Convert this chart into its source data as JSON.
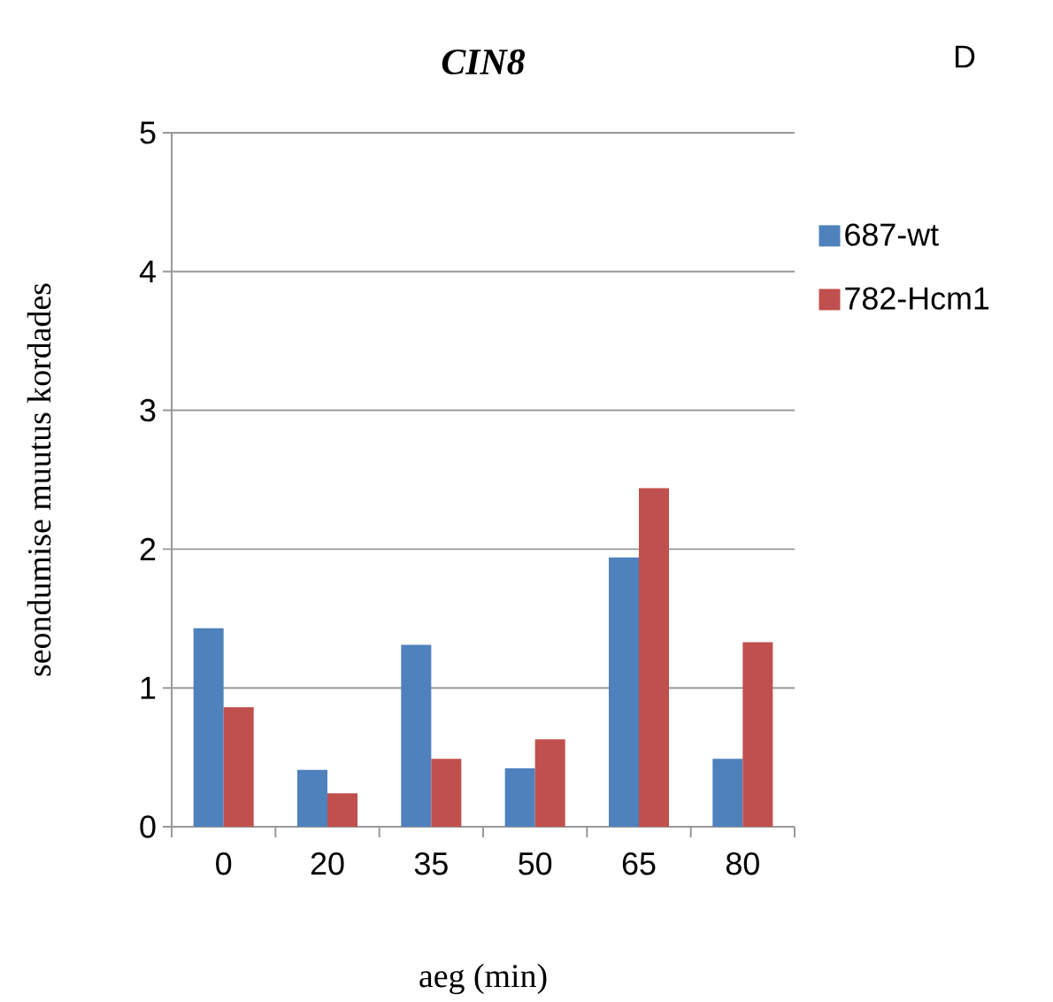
{
  "chart_data": {
    "type": "bar",
    "title": "CIN8",
    "xlabel": "aeg (min)",
    "ylabel": "seondumise muutus kordades",
    "annotations": [
      "D"
    ],
    "categories": [
      "0",
      "20",
      "35",
      "50",
      "65",
      "80"
    ],
    "series": [
      {
        "name": "687-wt",
        "color": "#4f81bd",
        "values": [
          1.43,
          0.41,
          1.31,
          0.42,
          1.94,
          0.49
        ]
      },
      {
        "name": "782-Hcm1",
        "color": "#c0504d",
        "values": [
          0.86,
          0.24,
          0.49,
          0.63,
          2.44,
          1.33
        ]
      }
    ],
    "ylim": [
      0,
      5
    ],
    "yticks": [
      0,
      1,
      2,
      3,
      4,
      5
    ],
    "grid": "y",
    "legend": "right"
  }
}
